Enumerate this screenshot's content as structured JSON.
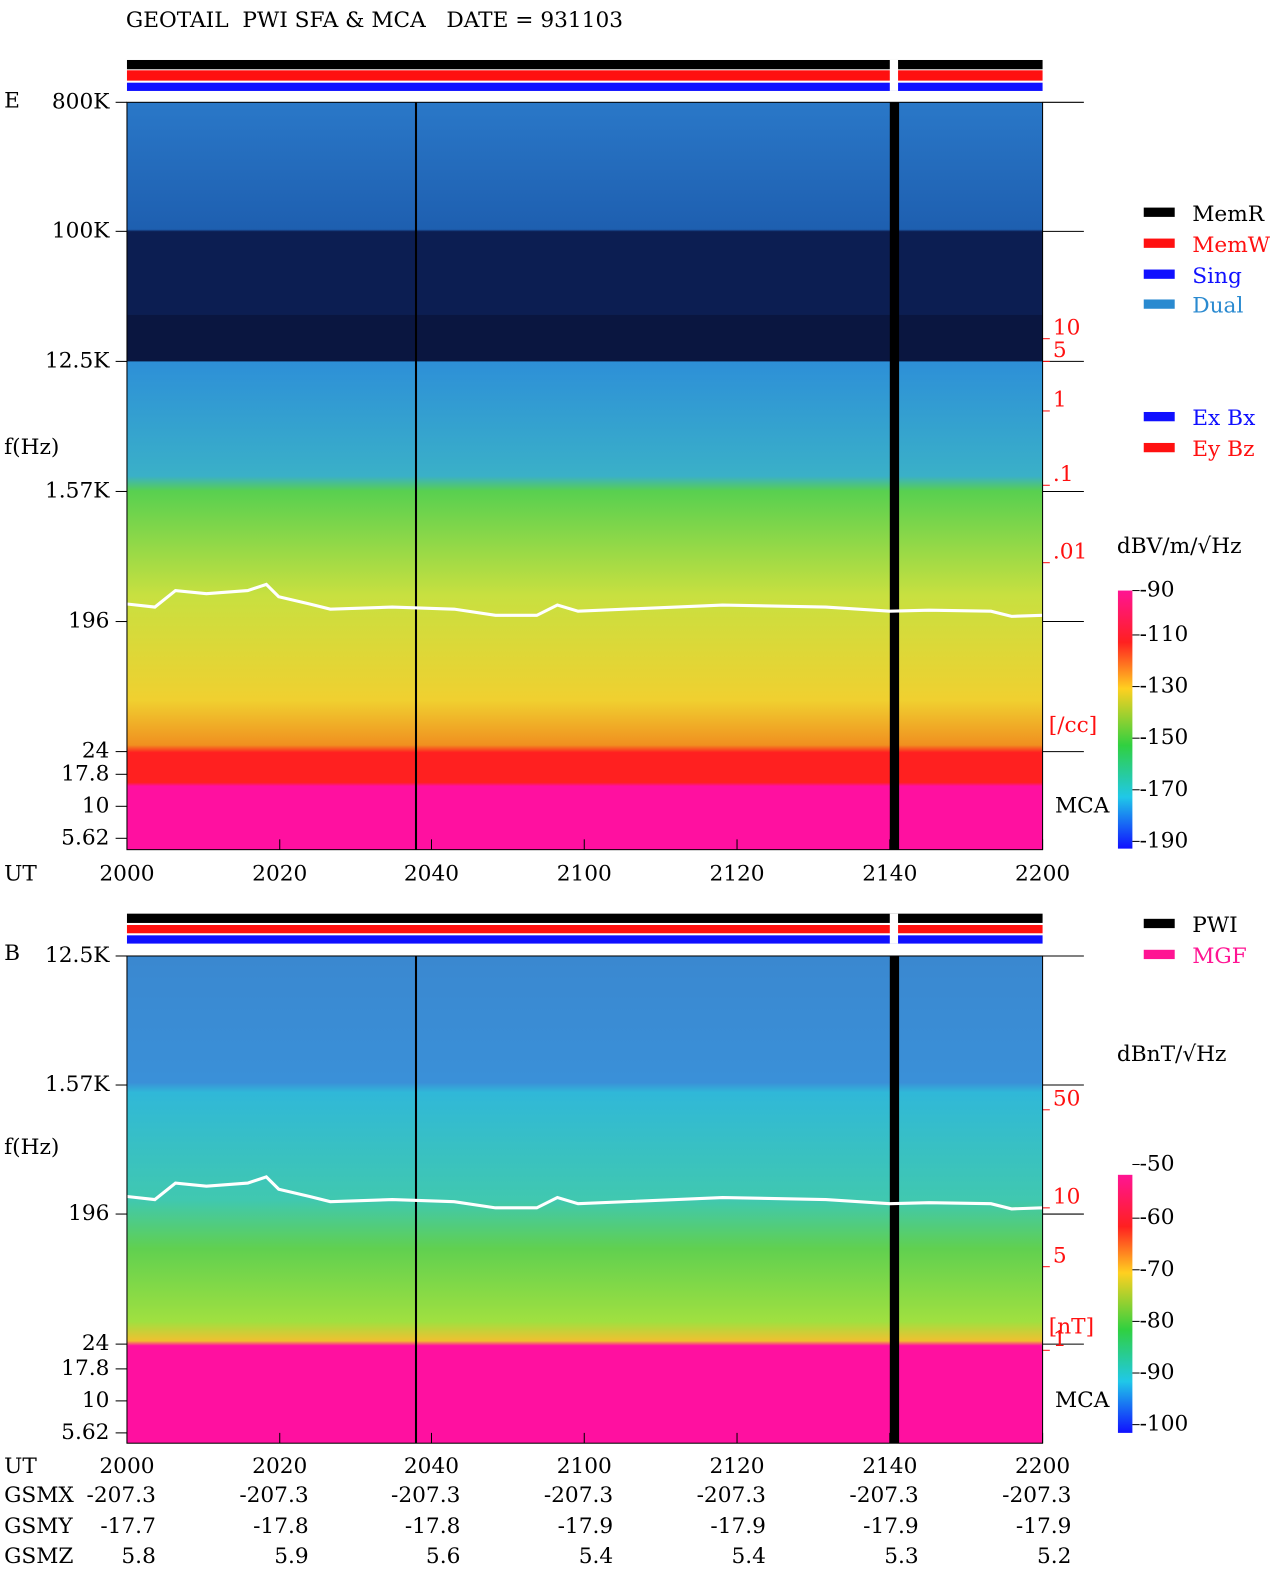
{
  "header": {
    "title": "GEOTAIL  PWI SFA & MCA   DATE = 931103"
  },
  "panels": [
    {
      "label": "E",
      "freq_axis": {
        "title": "f(Hz)",
        "ticks": [
          "800K",
          "100K",
          "12.5K",
          "1.57K",
          "196",
          "24",
          "17.8",
          "10",
          "5.62"
        ]
      },
      "side_scale": {
        "ticks": [
          "10",
          "5",
          "1",
          ".1",
          ".01"
        ],
        "unit": "[/cc]"
      },
      "mca_label": "MCA",
      "time_axis": {
        "title": "UT",
        "ticks": [
          "2000",
          "2020",
          "2040",
          "2100",
          "2120",
          "2140",
          "2200"
        ]
      },
      "legend": [
        {
          "label": "MemR",
          "color": "#000000"
        },
        {
          "label": "MemW",
          "color": "#ff1010"
        },
        {
          "label": "Sing",
          "color": "#1010ff"
        },
        {
          "label": "Dual",
          "color": "#2a8ad0"
        },
        {
          "label": "Ex Bx",
          "color": "#1010ff"
        },
        {
          "label": "Ey Bz",
          "color": "#ff1010"
        }
      ],
      "colorbar": {
        "unit": "dBV/m/√Hz",
        "ticks": [
          -90,
          -110,
          -130,
          -150,
          -170,
          -190
        ]
      }
    },
    {
      "label": "B",
      "freq_axis": {
        "title": "f(Hz)",
        "ticks": [
          "12.5K",
          "1.57K",
          "196",
          "24",
          "17.8",
          "10",
          "5.62"
        ]
      },
      "side_scale": {
        "ticks": [
          "50",
          "10",
          "5",
          "1"
        ],
        "unit": "[nT]"
      },
      "mca_label": "MCA",
      "time_axis": {
        "title": "UT",
        "ticks": [
          "2000",
          "2020",
          "2040",
          "2100",
          "2120",
          "2140",
          "2200"
        ]
      },
      "legend": [
        {
          "label": "PWI",
          "color": "#000000"
        },
        {
          "label": "MGF",
          "color": "#ff1493"
        }
      ],
      "colorbar": {
        "unit": "dBnT/√Hz",
        "ticks": [
          -50,
          -60,
          -70,
          -80,
          -90,
          -100
        ]
      }
    }
  ],
  "orbit": {
    "rows": [
      {
        "label": "GSMX",
        "values": [
          -207.3,
          -207.3,
          -207.3,
          -207.3,
          -207.3,
          -207.3,
          -207.3
        ]
      },
      {
        "label": "GSMY",
        "values": [
          -17.7,
          -17.8,
          -17.8,
          -17.9,
          -17.9,
          -17.9,
          -17.9
        ]
      },
      {
        "label": "GSMZ",
        "values": [
          5.8,
          5.9,
          5.6,
          5.4,
          5.4,
          5.3,
          5.2
        ]
      }
    ]
  }
}
